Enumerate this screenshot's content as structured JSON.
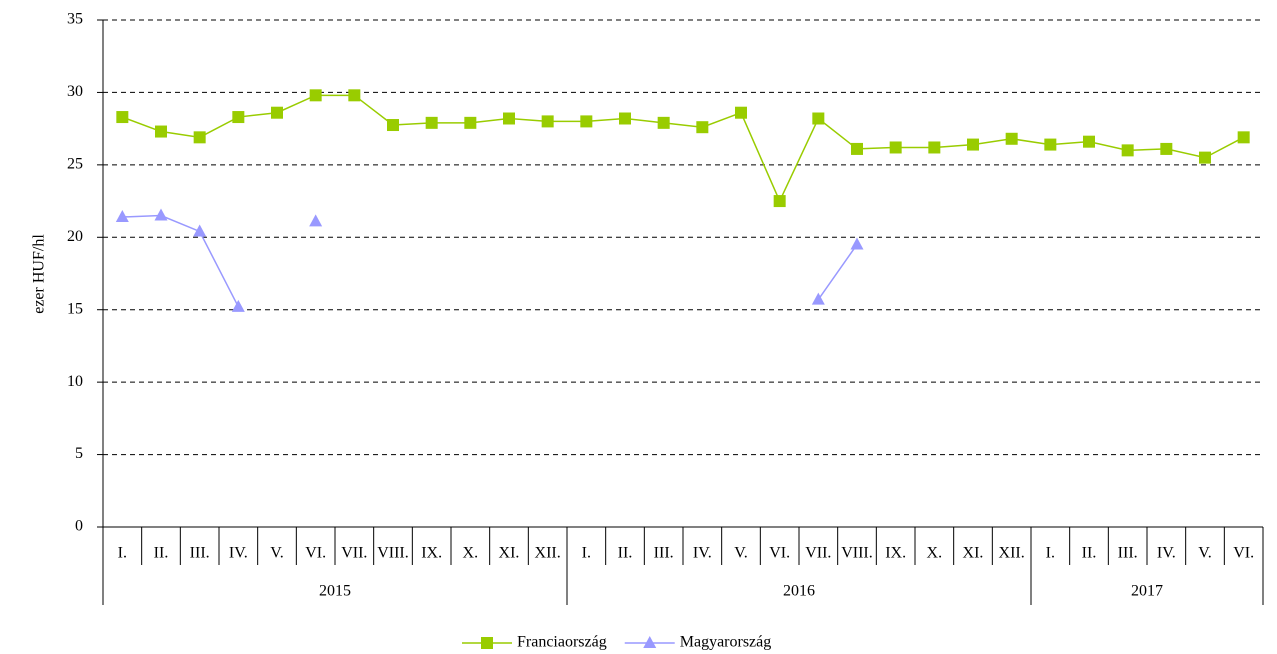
{
  "chart_data": {
    "type": "line",
    "ylabel": "ezer HUF/hl",
    "categories": [
      "I.",
      "II.",
      "III.",
      "IV.",
      "V.",
      "VI.",
      "VII.",
      "VIII.",
      "IX.",
      "X.",
      "XI.",
      "XII.",
      "I.",
      "II.",
      "III.",
      "IV.",
      "V.",
      "VI.",
      "VII.",
      "VIII.",
      "IX.",
      "X.",
      "XI.",
      "XII.",
      "I.",
      "II.",
      "III.",
      "IV.",
      "V.",
      "VI."
    ],
    "category_groups": [
      {
        "label": "2015",
        "span": 12
      },
      {
        "label": "2016",
        "span": 12
      },
      {
        "label": "2017",
        "span": 6
      }
    ],
    "series": [
      {
        "name": "Franciaország",
        "color": "#99cc00",
        "marker": "square",
        "values": [
          28.3,
          27.3,
          26.9,
          28.3,
          28.6,
          29.8,
          29.8,
          27.75,
          27.9,
          27.9,
          28.2,
          28.0,
          28.0,
          28.2,
          27.9,
          27.6,
          28.6,
          22.5,
          28.2,
          26.1,
          26.2,
          26.2,
          26.4,
          26.8,
          26.4,
          26.6,
          26.0,
          26.1,
          25.5,
          26.9
        ]
      },
      {
        "name": "Magyarország",
        "color": "#9999ff",
        "marker": "triangle",
        "values": [
          21.4,
          21.5,
          20.4,
          15.2,
          null,
          21.1,
          null,
          null,
          null,
          null,
          null,
          null,
          null,
          null,
          null,
          null,
          null,
          null,
          15.7,
          19.5,
          null,
          null,
          null,
          null,
          null,
          null,
          null,
          null,
          null,
          null
        ]
      }
    ],
    "ylim": [
      0,
      35
    ],
    "yticks": [
      0,
      5,
      10,
      15,
      20,
      25,
      30,
      35
    ],
    "grid": true,
    "legend": "bottom"
  }
}
